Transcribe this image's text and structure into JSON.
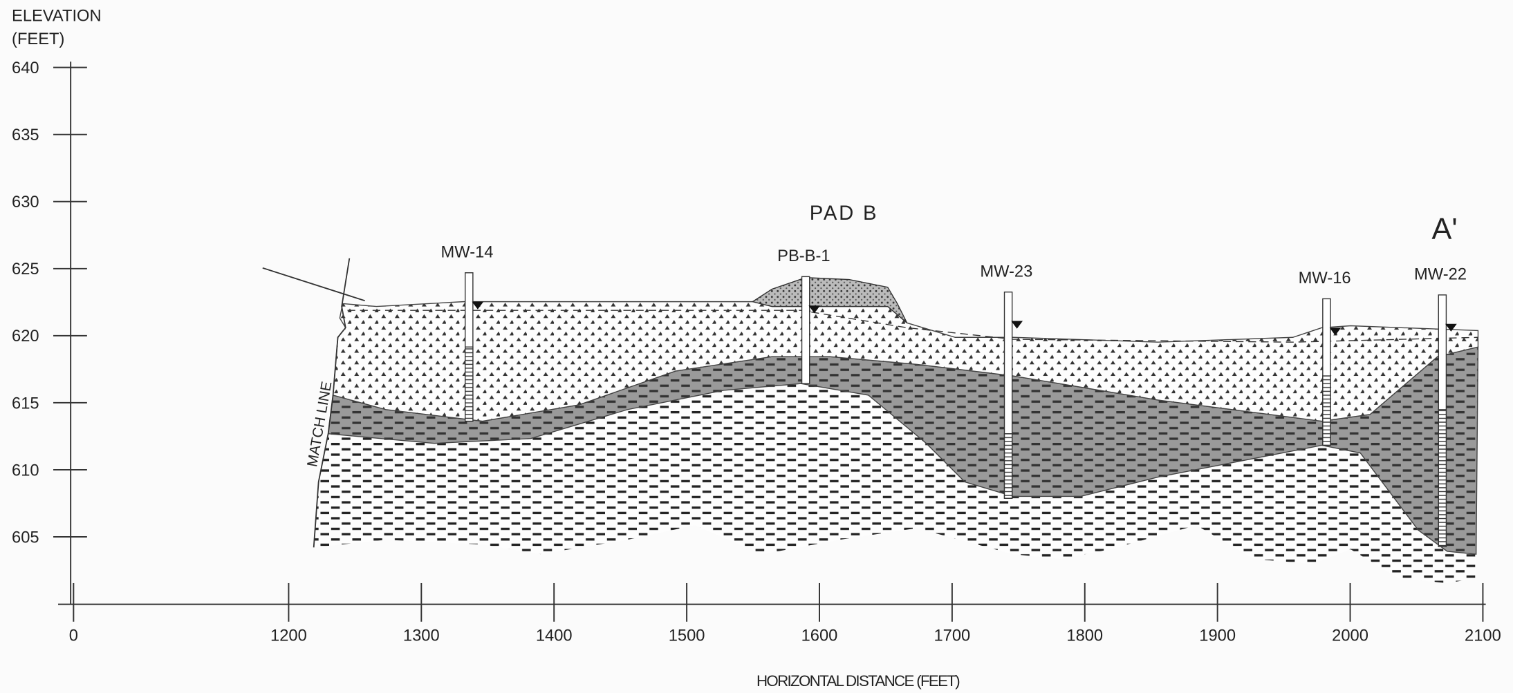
{
  "axes": {
    "y_title": [
      "ELEVATION",
      "(FEET)"
    ],
    "yticks": [
      640,
      635,
      630,
      625,
      620,
      615,
      610,
      605
    ],
    "xticks": [
      0,
      1200,
      1300,
      1400,
      1500,
      1600,
      1700,
      1800,
      1900,
      2000,
      2100
    ],
    "x_title": "HORIZONTAL DISTANCE (FEET)"
  },
  "labels": {
    "pad": "PAD B",
    "section": "A'",
    "match_line": "MATCH LINE"
  },
  "wells": [
    {
      "name": "MW-14"
    },
    {
      "name": "PB-B-1"
    },
    {
      "name": "MW-23"
    },
    {
      "name": "MW-16"
    },
    {
      "name": "MW-22"
    }
  ]
}
